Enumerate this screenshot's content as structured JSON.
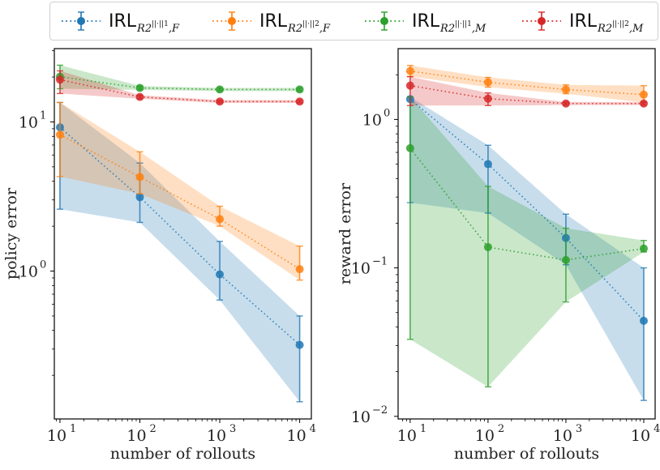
{
  "legend": {
    "placement": "top-center",
    "entries": [
      {
        "name": "IRL_R2^{||·||1},F",
        "main": "IRL",
        "sub_base": "R",
        "sub_2": "2",
        "sub_sup": "||·||1",
        "sub_tail": ",F",
        "color": "#1f77b4"
      },
      {
        "name": "IRL_R2^{||·||2},F",
        "main": "IRL",
        "sub_base": "R",
        "sub_2": "2",
        "sub_sup": "||·||2",
        "sub_tail": ",F",
        "color": "#ff7f0e"
      },
      {
        "name": "IRL_R2^{||·||1},M",
        "main": "IRL",
        "sub_base": "R",
        "sub_2": "2",
        "sub_sup": "||·||1",
        "sub_tail": ",M",
        "color": "#2ca02c"
      },
      {
        "name": "IRL_R2^{||·||2},M",
        "main": "IRL",
        "sub_base": "R",
        "sub_2": "2",
        "sub_sup": "||·||2",
        "sub_tail": ",M",
        "color": "#d62728"
      }
    ]
  },
  "chart_data": [
    {
      "type": "line",
      "xscale": "log",
      "yscale": "log",
      "title": "",
      "xlabel": "number of rollouts",
      "ylabel": "policy error",
      "xlim": [
        8.5,
        14000
      ],
      "ylim": [
        0.102,
        31
      ],
      "x": [
        10,
        100,
        1000,
        10000
      ],
      "xticks": [
        {
          "value": 10,
          "label": "10",
          "exp": "1"
        },
        {
          "value": 100,
          "label": "10",
          "exp": "2"
        },
        {
          "value": 1000,
          "label": "10",
          "exp": "3"
        },
        {
          "value": 10000,
          "label": "10",
          "exp": "4"
        }
      ],
      "yticks": [
        {
          "value": 1,
          "label": "10",
          "exp": "0"
        },
        {
          "value": 10,
          "label": "10",
          "exp": "1"
        }
      ],
      "grid": false,
      "series": [
        {
          "name": "IRL_R2^{||·||1},F",
          "color": "#1f77b4",
          "values": [
            9.2,
            3.13,
            0.95,
            0.32
          ],
          "lower": [
            2.6,
            2.12,
            0.64,
            0.133
          ],
          "upper": [
            13.5,
            5.3,
            1.58,
            0.5
          ]
        },
        {
          "name": "IRL_R2^{||·||2},F",
          "color": "#ff7f0e",
          "values": [
            8.2,
            4.27,
            2.23,
            1.03
          ],
          "lower": [
            4.3,
            3.3,
            2.0,
            0.87
          ],
          "upper": [
            13.5,
            6.3,
            2.72,
            1.47
          ]
        },
        {
          "name": "IRL_R2^{||·||1},M",
          "color": "#2ca02c",
          "values": [
            20.1,
            16.9,
            16.5,
            16.5
          ],
          "lower": [
            16.7,
            16.4,
            16.1,
            16.1
          ],
          "upper": [
            24.0,
            17.4,
            16.9,
            16.9
          ]
        },
        {
          "name": "IRL_R2^{||·||2},M",
          "color": "#d62728",
          "values": [
            19.2,
            14.7,
            13.7,
            13.7
          ],
          "lower": [
            15.5,
            14.3,
            13.4,
            13.4
          ],
          "upper": [
            22.0,
            15.1,
            14.0,
            14.0
          ]
        }
      ]
    },
    {
      "type": "line",
      "xscale": "log",
      "yscale": "log",
      "title": "",
      "xlabel": "number of rollouts",
      "ylabel": "reward error",
      "xlim": [
        7.0,
        14000
      ],
      "ylim": [
        0.0096,
        3.0
      ],
      "x": [
        10,
        100,
        1000,
        10000
      ],
      "xticks": [
        {
          "value": 10,
          "label": "10",
          "exp": "1"
        },
        {
          "value": 100,
          "label": "10",
          "exp": "2"
        },
        {
          "value": 1000,
          "label": "10",
          "exp": "3"
        },
        {
          "value": 10000,
          "label": "10",
          "exp": "4"
        }
      ],
      "yticks": [
        {
          "value": 0.01,
          "label": "10",
          "exp": "−2"
        },
        {
          "value": 0.1,
          "label": "10",
          "exp": "−1"
        },
        {
          "value": 1,
          "label": "10",
          "exp": "0"
        }
      ],
      "grid": false,
      "series": [
        {
          "name": "IRL_R2^{||·||1},F",
          "color": "#1f77b4",
          "values": [
            1.37,
            0.5,
            0.159,
            0.044
          ],
          "lower": [
            0.275,
            0.234,
            0.105,
            0.0128
          ],
          "upper": [
            1.42,
            0.67,
            0.23,
            0.1
          ]
        },
        {
          "name": "IRL_R2^{||·||2},F",
          "color": "#ff7f0e",
          "values": [
            2.12,
            1.78,
            1.59,
            1.47
          ],
          "lower": [
            1.95,
            1.65,
            1.49,
            1.3
          ],
          "upper": [
            2.31,
            1.92,
            1.71,
            1.69
          ]
        },
        {
          "name": "IRL_R2^{||·||1},M",
          "color": "#2ca02c",
          "values": [
            0.64,
            0.138,
            0.113,
            0.135
          ],
          "lower": [
            0.033,
            0.0158,
            0.059,
            0.128
          ],
          "upper": [
            1.42,
            0.354,
            0.185,
            0.153
          ]
        },
        {
          "name": "IRL_R2^{||·||2},M",
          "color": "#d62728",
          "values": [
            1.69,
            1.38,
            1.28,
            1.28
          ],
          "lower": [
            1.24,
            1.24,
            1.25,
            1.25
          ],
          "upper": [
            1.94,
            1.51,
            1.31,
            1.31
          ]
        }
      ]
    }
  ]
}
